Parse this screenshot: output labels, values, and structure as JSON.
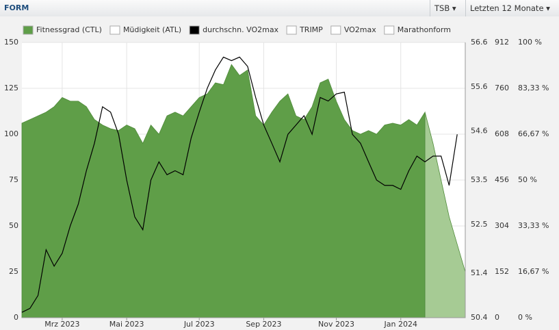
{
  "header": {
    "title": "FORM",
    "dropdowns": [
      "TSB",
      "Letzten 12 Monate"
    ]
  },
  "chart_data": {
    "type": "area",
    "legend": [
      {
        "name": "Fitnessgrad (CTL)",
        "color": "#5f9e48"
      },
      {
        "name": "Müdigkeit (ATL)",
        "color": "#ffffff"
      },
      {
        "name": "durchschn. VO2max",
        "color": "#000000"
      },
      {
        "name": "TRIMP",
        "color": "#ffffff"
      },
      {
        "name": "VO2max",
        "color": "#ffffff"
      },
      {
        "name": "Marathonform",
        "color": "#ffffff"
      }
    ],
    "categories": [
      null,
      null,
      null,
      null,
      null,
      "Mrz 2023",
      null,
      null,
      null,
      null,
      null,
      null,
      null,
      "Mai 2023",
      null,
      null,
      null,
      null,
      null,
      null,
      null,
      null,
      "Jul 2023",
      null,
      null,
      null,
      null,
      null,
      null,
      null,
      "Sep 2023",
      null,
      null,
      null,
      null,
      null,
      null,
      null,
      null,
      "Nov 2023",
      null,
      null,
      null,
      null,
      null,
      null,
      null,
      "Jan 2024",
      null,
      null,
      null,
      null,
      null,
      null,
      null,
      null
    ],
    "series": [
      {
        "name": "Fitnessgrad (CTL)",
        "color": "#5f9e48",
        "kind": "area",
        "values": [
          106,
          108,
          110,
          112,
          115,
          120,
          118,
          118,
          115,
          108,
          105,
          103,
          102,
          105,
          103,
          95,
          105,
          100,
          110,
          112,
          110,
          115,
          120,
          122,
          128,
          127,
          138,
          132,
          135,
          110,
          105,
          112,
          118,
          122,
          110,
          108,
          115,
          128,
          130,
          118,
          108,
          102,
          100,
          102,
          100,
          105,
          106,
          105,
          108,
          105,
          112,
          null,
          null,
          null,
          null,
          null
        ]
      },
      {
        "color": "#a6cb94",
        "kind": "area",
        "values": [
          null,
          null,
          null,
          null,
          null,
          null,
          null,
          null,
          null,
          null,
          null,
          null,
          null,
          null,
          null,
          null,
          null,
          null,
          null,
          null,
          null,
          null,
          null,
          null,
          null,
          null,
          null,
          null,
          null,
          null,
          null,
          null,
          null,
          null,
          null,
          null,
          null,
          null,
          null,
          null,
          null,
          null,
          null,
          null,
          null,
          null,
          null,
          null,
          null,
          null,
          112,
          95,
          75,
          55,
          40,
          25
        ]
      },
      {
        "name": "durchschn. VO2max",
        "color": "#000000",
        "kind": "line",
        "axis": "y2",
        "values": [
          50.52,
          50.61,
          50.9,
          51.93,
          51.56,
          51.85,
          52.47,
          52.96,
          53.71,
          54.33,
          55.15,
          55.03,
          54.53,
          53.5,
          52.67,
          52.38,
          53.5,
          53.91,
          53.62,
          53.71,
          53.62,
          54.45,
          55.03,
          55.57,
          55.98,
          56.27,
          56.19,
          56.27,
          56.06,
          55.36,
          54.74,
          54.33,
          53.91,
          54.53,
          54.74,
          54.95,
          54.53,
          55.36,
          55.28,
          55.44,
          55.48,
          54.53,
          54.33,
          53.91,
          53.5,
          53.38,
          53.38,
          53.29,
          53.71,
          54.04,
          53.91,
          54.04,
          54.04,
          53.38,
          54.53,
          null
        ]
      }
    ],
    "ylim": [
      0,
      150
    ],
    "yticks": [
      0,
      25,
      50,
      75,
      100,
      125,
      150
    ],
    "y2lim": [
      50.4,
      56.6
    ],
    "y2ticks": [
      50.4,
      51.4,
      52.5,
      53.5,
      54.6,
      55.6,
      56.6
    ],
    "y3lim": [
      0,
      912
    ],
    "y3ticks": [
      0,
      152,
      304,
      456,
      608,
      760,
      912
    ],
    "y4lim": [
      0,
      100
    ],
    "y4ticks": [
      {
        "value": 0,
        "label": "0 %"
      },
      {
        "value": 16.67,
        "label": "16,67 %"
      },
      {
        "value": 33.33,
        "label": "33,33 %"
      },
      {
        "value": 50,
        "label": "50 %"
      },
      {
        "value": 66.67,
        "label": "66,67 %"
      },
      {
        "value": 83.33,
        "label": "83,33 %"
      },
      {
        "value": 100,
        "label": "100 %"
      }
    ],
    "grid": true
  }
}
